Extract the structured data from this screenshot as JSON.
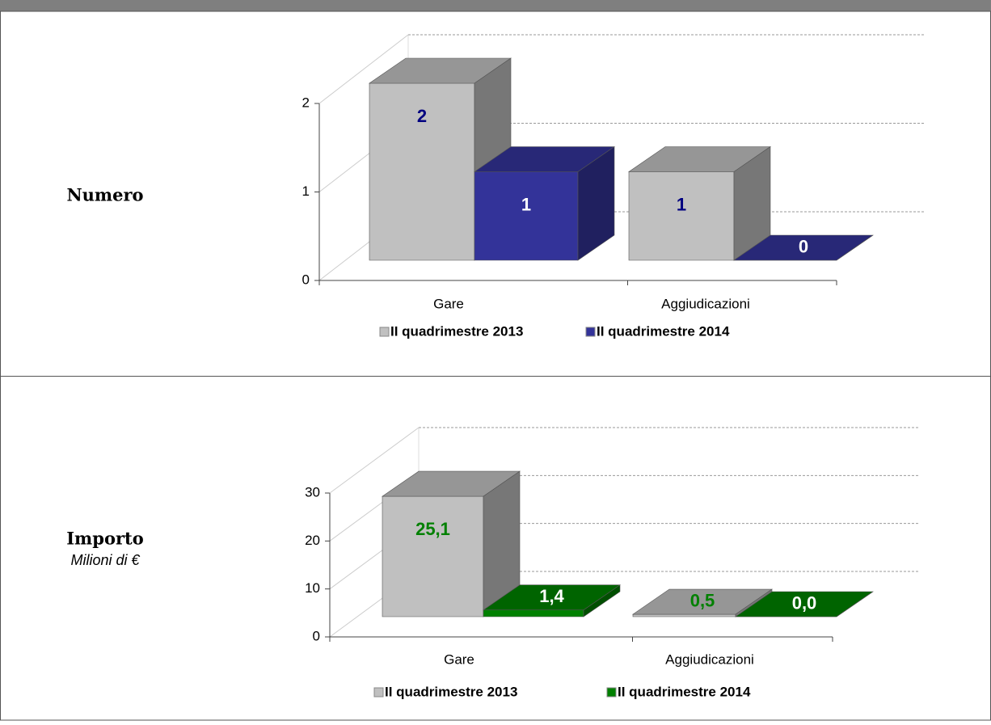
{
  "chart_data": [
    {
      "type": "bar3d",
      "ylabel": "Numero",
      "categories": [
        "Gare",
        "Aggiudicazioni"
      ],
      "series": [
        {
          "name": "II quadrimestre 2013",
          "color": "#c0c0c0",
          "label_color": "#000080",
          "values": [
            2,
            1
          ]
        },
        {
          "name": "II quadrimestre 2014",
          "color": "#333399",
          "label_color": "#ffffff",
          "values": [
            1,
            0
          ]
        }
      ],
      "ylim": [
        0,
        2
      ],
      "yticks": [
        0,
        1,
        2
      ],
      "grid": true,
      "legend": "bottom"
    },
    {
      "type": "bar3d",
      "ylabel": "Importo",
      "yunit": "Milioni di €",
      "categories": [
        "Gare",
        "Aggiudicazioni"
      ],
      "series": [
        {
          "name": "II quadrimestre 2013",
          "color": "#c0c0c0",
          "label_color": "#008000",
          "values": [
            25.1,
            0.5
          ],
          "value_labels": [
            "25,1",
            "0,5"
          ]
        },
        {
          "name": "II quadrimestre 2014",
          "color": "#008000",
          "label_color": "#ffffff",
          "values": [
            1.4,
            0.0
          ],
          "value_labels": [
            "1,4",
            "0,0"
          ]
        }
      ],
      "ylim": [
        0,
        30
      ],
      "yticks": [
        0,
        10,
        20,
        30
      ],
      "grid": true,
      "legend": "bottom"
    }
  ]
}
